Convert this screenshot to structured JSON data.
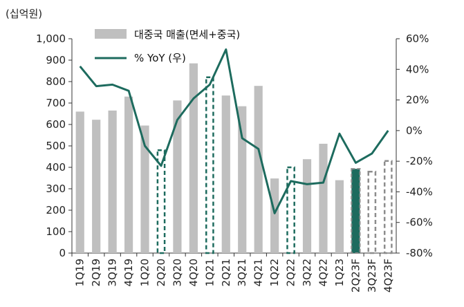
{
  "chart_data": {
    "type": "bar",
    "title": "",
    "unit_label": "(십억원)",
    "categories": [
      "1Q19",
      "2Q19",
      "3Q19",
      "4Q19",
      "1Q20",
      "2Q20",
      "3Q20",
      "4Q20",
      "1Q21",
      "2Q21",
      "3Q21",
      "4Q21",
      "1Q22",
      "2Q22",
      "3Q22",
      "4Q22",
      "1Q23",
      "2Q23F",
      "3Q23F",
      "4Q23F"
    ],
    "y_left": {
      "ylim": [
        0,
        1000
      ],
      "ticks": [
        "0",
        "100",
        "200",
        "300",
        "400",
        "500",
        "600",
        "700",
        "800",
        "900",
        "1,000"
      ]
    },
    "y_right": {
      "ylim": [
        -80,
        60
      ],
      "ticks": [
        "-80%",
        "-60%",
        "-40%",
        "-20%",
        "0%",
        "20%",
        "40%",
        "60%"
      ]
    },
    "series": [
      {
        "name": "대중국 매출(면세+중국)",
        "type": "bar",
        "axis": "left",
        "values": [
          660,
          622,
          665,
          730,
          595,
          480,
          712,
          885,
          820,
          735,
          685,
          780,
          348,
          400,
          438,
          510,
          340,
          393,
          380,
          430
        ],
        "styles": [
          "solid",
          "solid",
          "solid",
          "solid",
          "solid",
          "dashed-green",
          "solid",
          "solid",
          "dashed-green",
          "solid",
          "solid",
          "solid",
          "solid",
          "dashed-green",
          "solid",
          "solid",
          "solid",
          "highlight",
          "dashed-gray",
          "dashed-gray"
        ]
      },
      {
        "name": "% YoY (우)",
        "type": "line",
        "axis": "right",
        "values": [
          42,
          29,
          30,
          26,
          -10,
          -23,
          7,
          21,
          30,
          53,
          -5,
          -12,
          -54,
          -33,
          -35,
          -34,
          -2,
          -21,
          -15,
          0
        ]
      }
    ],
    "colors": {
      "bar": "#bfbfbf",
      "line": "#1d6b5e",
      "highlight": "#1d6b5e",
      "dashed_green": "#1d6b5e",
      "dashed_gray": "#8c8c8c"
    },
    "grid": false,
    "legend_position": "top-left"
  }
}
